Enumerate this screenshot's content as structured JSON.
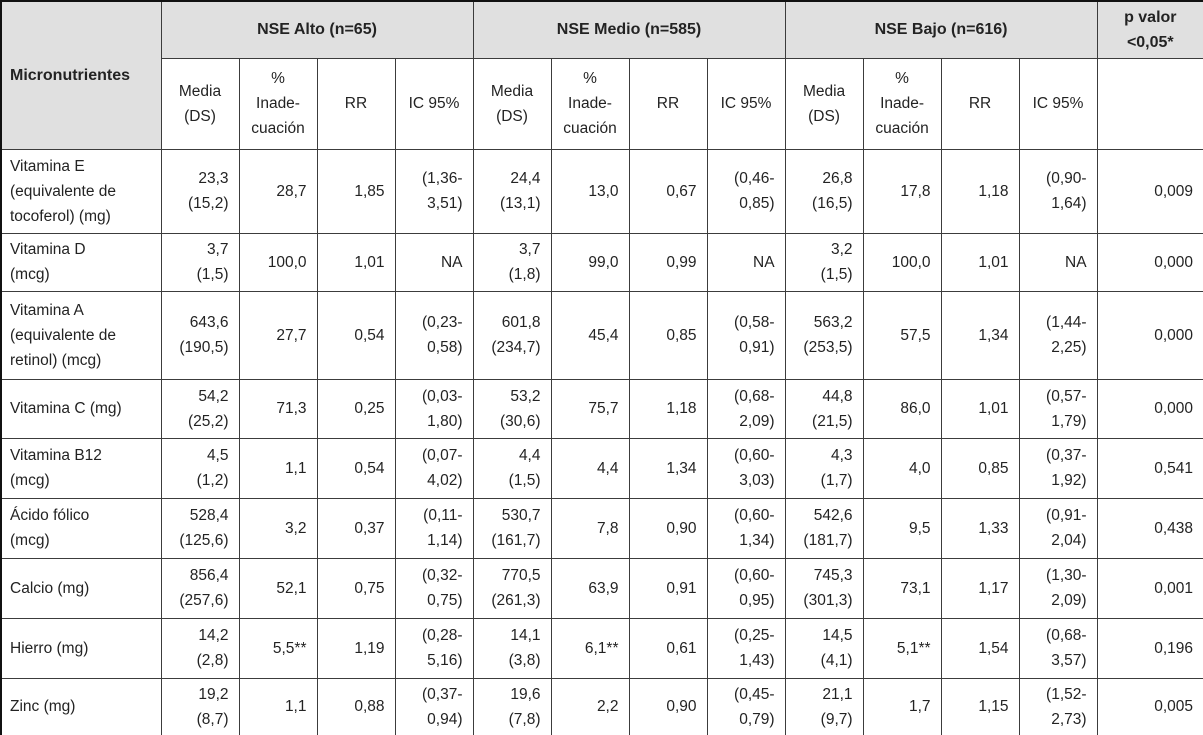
{
  "table": {
    "corner_label": "Micronutrientes",
    "groups": [
      {
        "label": "NSE Alto (n=65)"
      },
      {
        "label": "NSE Medio (n=585)"
      },
      {
        "label": "NSE Bajo (n=616)"
      }
    ],
    "p_header": "p valor\n<0,05*",
    "subheaders": [
      "Media\n(DS)",
      "%\nInade-\ncuación",
      "RR",
      "IC 95%"
    ],
    "rows": [
      {
        "label": "Vitamina E\n(equivalente de\ntocoferol) (mg)",
        "cells": [
          "23,3\n(15,2)",
          "28,7",
          "1,85",
          "(1,36-\n3,51)",
          "24,4\n(13,1)",
          "13,0",
          "0,67",
          "(0,46-\n0,85)",
          "26,8\n(16,5)",
          "17,8",
          "1,18",
          "(0,90-\n1,64)",
          "0,009"
        ]
      },
      {
        "label": "Vitamina D\n(mcg)",
        "cells": [
          "3,7\n(1,5)",
          "100,0",
          "1,01",
          "NA",
          "3,7\n(1,8)",
          "99,0",
          "0,99",
          "NA",
          "3,2\n(1,5)",
          "100,0",
          "1,01",
          "NA",
          "0,000"
        ]
      },
      {
        "label": "Vitamina A\n(equivalente de\nretinol) (mcg)",
        "cells": [
          "643,6\n(190,5)",
          "27,7",
          "0,54",
          "(0,23-\n0,58)",
          "601,8\n(234,7)",
          "45,4",
          "0,85",
          "(0,58-\n0,91)",
          "563,2\n(253,5)",
          "57,5",
          "1,34",
          "(1,44-\n2,25)",
          "0,000"
        ]
      },
      {
        "label": "Vitamina C (mg)",
        "cells": [
          "54,2\n(25,2)",
          "71,3",
          "0,25",
          "(0,03-\n1,80)",
          "53,2\n(30,6)",
          "75,7",
          "1,18",
          "(0,68-\n2,09)",
          "44,8\n(21,5)",
          "86,0",
          "1,01",
          "(0,57-\n1,79)",
          "0,000"
        ]
      },
      {
        "label": "Vitamina B12\n(mcg)",
        "cells": [
          "4,5\n(1,2)",
          "1,1",
          "0,54",
          "(0,07-\n4,02)",
          "4,4\n(1,5)",
          "4,4",
          "1,34",
          "(0,60-\n3,03)",
          "4,3\n(1,7)",
          "4,0",
          "0,85",
          "(0,37-\n1,92)",
          "0,541"
        ]
      },
      {
        "label": "Ácido fólico\n(mcg)",
        "cells": [
          "528,4\n(125,6)",
          "3,2",
          "0,37",
          "(0,11-\n1,14)",
          "530,7\n(161,7)",
          "7,8",
          "0,90",
          "(0,60-\n1,34)",
          "542,6\n(181,7)",
          "9,5",
          "1,33",
          "(0,91-\n2,04)",
          "0,438"
        ]
      },
      {
        "label": "Calcio (mg)",
        "cells": [
          "856,4\n(257,6)",
          "52,1",
          "0,75",
          "(0,32-\n0,75)",
          "770,5\n(261,3)",
          "63,9",
          "0,91",
          "(0,60-\n0,95)",
          "745,3\n(301,3)",
          "73,1",
          "1,17",
          "(1,30-\n2,09)",
          "0,001"
        ]
      },
      {
        "label": "Hierro (mg)",
        "cells": [
          "14,2\n(2,8)",
          "5,5**",
          "1,19",
          "(0,28-\n5,16)",
          "14,1\n(3,8)",
          "6,1**",
          "0,61",
          "(0,25-\n1,43)",
          "14,5\n(4,1)",
          "5,1**",
          "1,54",
          "(0,68-\n3,57)",
          "0,196"
        ]
      },
      {
        "label": "Zinc (mg)",
        "cells": [
          "19,2\n(8,7)",
          "1,1",
          "0,88",
          "(0,37-\n0,94)",
          "19,6\n(7,8)",
          "2,2",
          "0,90",
          "(0,45-\n0,79)",
          "21,1\n(9,7)",
          "1,7",
          "1,15",
          "(1,52-\n2,73)",
          "0,005"
        ]
      }
    ]
  }
}
